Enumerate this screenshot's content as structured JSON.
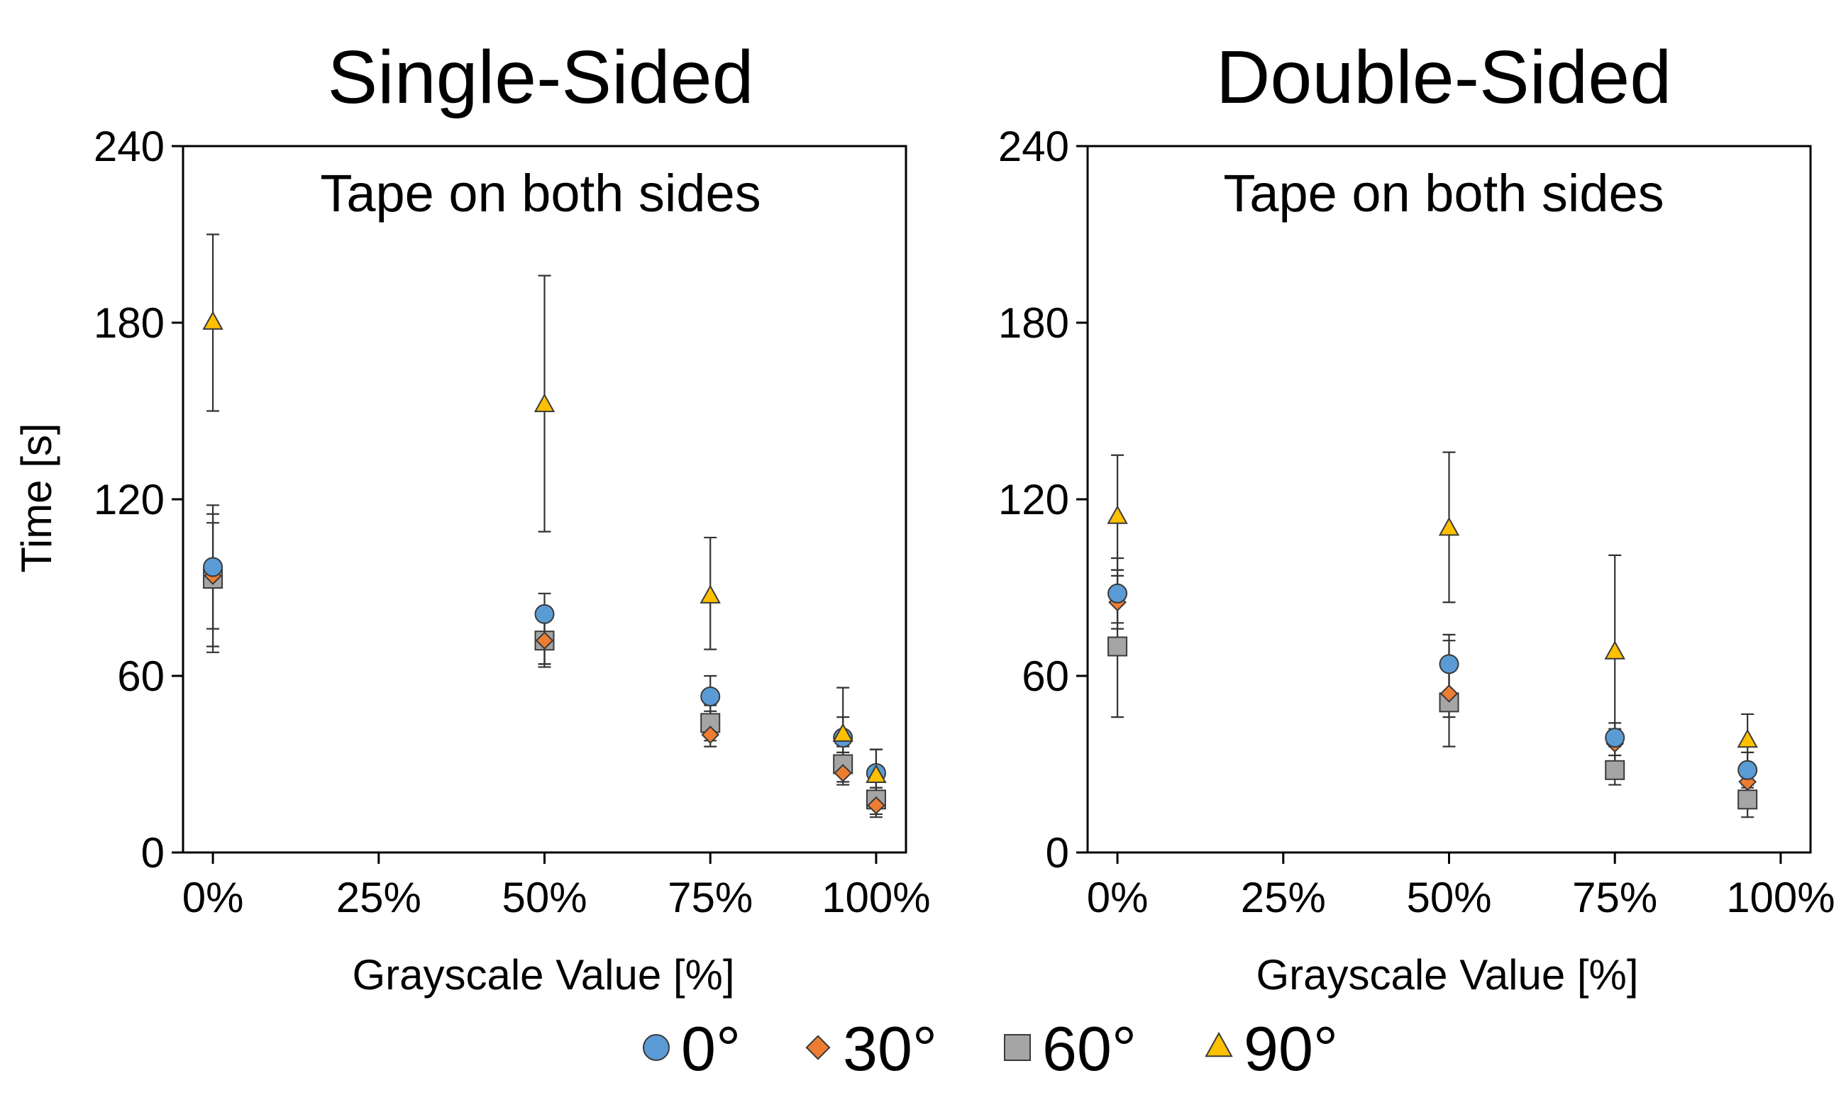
{
  "figure": {
    "ylabel": "Time [s]",
    "xlabel": "Grayscale Value [%]"
  },
  "chart_data": [
    {
      "type": "scatter",
      "title": "Single-Sided",
      "annotation": "Tape on both sides",
      "xlabel": "Grayscale Value [%]",
      "ylabel": "Time [s]",
      "xlim": [
        -4.5,
        104.5
      ],
      "ylim": [
        0,
        240
      ],
      "xticks": [
        0,
        25,
        50,
        75,
        100
      ],
      "xtick_labels": [
        "0%",
        "25%",
        "50%",
        "75%",
        "100%"
      ],
      "yticks": [
        0,
        60,
        120,
        180,
        240
      ],
      "ytick_labels": [
        "0",
        "60",
        "120",
        "180",
        "240"
      ],
      "series": [
        {
          "name": "0°",
          "points": [
            {
              "x": 0,
              "y": 97,
              "lo": 76,
              "hi": 118
            },
            {
              "x": 50,
              "y": 81,
              "lo": 64,
              "hi": 88
            },
            {
              "x": 75,
              "y": 53,
              "lo": 45,
              "hi": 60
            },
            {
              "x": 95,
              "y": 39,
              "lo": 28,
              "hi": 46
            },
            {
              "x": 100,
              "y": 27,
              "lo": 22,
              "hi": 35
            }
          ]
        },
        {
          "name": "30°",
          "points": [
            {
              "x": 0,
              "y": 94,
              "lo": 70,
              "hi": 115
            },
            {
              "x": 50,
              "y": 72,
              "lo": 64,
              "hi": 80
            },
            {
              "x": 75,
              "y": 40,
              "lo": 36,
              "hi": 48
            },
            {
              "x": 95,
              "y": 27,
              "lo": 23,
              "hi": 34
            },
            {
              "x": 100,
              "y": 16,
              "lo": 13,
              "hi": 22
            }
          ]
        },
        {
          "name": "60°",
          "points": [
            {
              "x": 0,
              "y": 93,
              "lo": 68,
              "hi": 112
            },
            {
              "x": 50,
              "y": 72,
              "lo": 63,
              "hi": 79
            },
            {
              "x": 75,
              "y": 44,
              "lo": 38,
              "hi": 50
            },
            {
              "x": 95,
              "y": 30,
              "lo": 24,
              "hi": 36
            },
            {
              "x": 100,
              "y": 18,
              "lo": 12,
              "hi": 25
            }
          ]
        },
        {
          "name": "90°",
          "points": [
            {
              "x": 0,
              "y": 180,
              "lo": 150,
              "hi": 210
            },
            {
              "x": 50,
              "y": 152,
              "lo": 109,
              "hi": 196
            },
            {
              "x": 75,
              "y": 87,
              "lo": 69,
              "hi": 107
            },
            {
              "x": 95,
              "y": 40,
              "lo": 28,
              "hi": 56
            },
            {
              "x": 100,
              "y": 26,
              "lo": 18,
              "hi": 35
            }
          ]
        }
      ]
    },
    {
      "type": "scatter",
      "title": "Double-Sided",
      "annotation": "Tape on both sides",
      "xlabel": "Grayscale Value [%]",
      "ylabel": "",
      "xlim": [
        -4.5,
        104.5
      ],
      "ylim": [
        0,
        240
      ],
      "xticks": [
        0,
        25,
        50,
        75,
        100
      ],
      "xtick_labels": [
        "0%",
        "25%",
        "50%",
        "75%",
        "100%"
      ],
      "yticks": [
        0,
        60,
        120,
        180,
        240
      ],
      "ytick_labels": [
        "0",
        "60",
        "120",
        "180",
        "240"
      ],
      "series": [
        {
          "name": "0°",
          "points": [
            {
              "x": 0,
              "y": 88,
              "lo": 78,
              "hi": 100
            },
            {
              "x": 50,
              "y": 64,
              "lo": 50,
              "hi": 74
            },
            {
              "x": 75,
              "y": 39,
              "lo": 33,
              "hi": 44
            },
            {
              "x": 95,
              "y": 28,
              "lo": 22,
              "hi": 34
            }
          ]
        },
        {
          "name": "30°",
          "points": [
            {
              "x": 0,
              "y": 85,
              "lo": 76,
              "hi": 96
            },
            {
              "x": 50,
              "y": 54,
              "lo": 46,
              "hi": 62
            },
            {
              "x": 75,
              "y": 37,
              "lo": 31,
              "hi": 42
            },
            {
              "x": 95,
              "y": 24,
              "lo": 20,
              "hi": 29
            }
          ]
        },
        {
          "name": "60°",
          "points": [
            {
              "x": 0,
              "y": 70,
              "lo": 46,
              "hi": 94
            },
            {
              "x": 50,
              "y": 51,
              "lo": 36,
              "hi": 72
            },
            {
              "x": 75,
              "y": 28,
              "lo": 23,
              "hi": 33
            },
            {
              "x": 95,
              "y": 18,
              "lo": 12,
              "hi": 23
            }
          ]
        },
        {
          "name": "90°",
          "points": [
            {
              "x": 0,
              "y": 114,
              "lo": 96,
              "hi": 135
            },
            {
              "x": 50,
              "y": 110,
              "lo": 85,
              "hi": 136
            },
            {
              "x": 75,
              "y": 68,
              "lo": 36,
              "hi": 101
            },
            {
              "x": 95,
              "y": 38,
              "lo": 30,
              "hi": 47
            }
          ]
        }
      ]
    }
  ],
  "legend": {
    "placement": "bottom-center",
    "items": [
      {
        "label": "0°",
        "marker": "circle",
        "color": "#5b9bd5"
      },
      {
        "label": "30°",
        "marker": "diamond",
        "color": "#ed7d31"
      },
      {
        "label": "60°",
        "marker": "square",
        "color": "#a5a5a5"
      },
      {
        "label": "90°",
        "marker": "triangle",
        "color": "#ffc000"
      }
    ]
  }
}
